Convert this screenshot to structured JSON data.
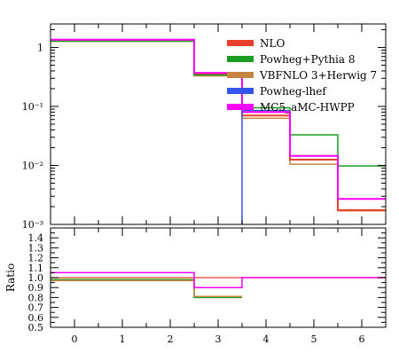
{
  "chart_data": [
    {
      "type": "line",
      "title": "",
      "xlabel": "",
      "ylabel": "",
      "yscale": "log",
      "xlim": [
        -0.5,
        6.5
      ],
      "ylim": [
        0.001,
        2.5
      ],
      "y_tick_labels": [
        "1",
        "10⁻¹",
        "10⁻²",
        "10⁻³"
      ],
      "y_tick_values": [
        1,
        0.1,
        0.01,
        0.001
      ],
      "legend": {
        "position": "top-right"
      },
      "bin_edges": [
        -0.5,
        2.5,
        3.5,
        4.5,
        5.5,
        6.5
      ],
      "series": [
        {
          "name": "NLO",
          "color": "#e8402a",
          "width": 2,
          "values": [
            1.3,
            0.36,
            0.07,
            0.0125,
            0.00175
          ]
        },
        {
          "name": "Powheg+Pythia 8",
          "color": "#1a9e22",
          "width": 1.5,
          "values": [
            1.28,
            0.34,
            0.095,
            0.033,
            0.0098
          ]
        },
        {
          "name": "VBFNLO 3+Herwig 7",
          "color": "#c68442",
          "width": 1.5,
          "values": [
            1.27,
            0.33,
            0.063,
            0.0105,
            0.0017
          ]
        },
        {
          "name": "Powheg-lhef",
          "color": "#3355ee",
          "width": 1.5,
          "values": [
            1.32,
            null,
            0.085,
            null,
            null
          ]
        },
        {
          "name": "MC5_aMC-HWPP",
          "color": "#ff00ff",
          "width": 2,
          "values": [
            1.35,
            0.37,
            0.08,
            0.0145,
            0.0027
          ]
        }
      ]
    },
    {
      "type": "line",
      "title": "",
      "xlabel": "",
      "ylabel": "Ratio",
      "xlim": [
        -0.5,
        6.5
      ],
      "ylim": [
        0.5,
        1.5
      ],
      "x_tick_labels": [
        "0",
        "1",
        "2",
        "3",
        "4",
        "5",
        "6"
      ],
      "y_tick_labels": [
        "0.5",
        "0.6",
        "0.7",
        "0.8",
        "0.9",
        "1.0",
        "1.1",
        "1.2",
        "1.3",
        "1.4"
      ],
      "bin_edges": [
        -0.5,
        2.5,
        3.5,
        6.5
      ],
      "series": [
        {
          "name": "Powheg+Pythia 8",
          "color": "#1a9e22",
          "width": 1.5,
          "values": [
            0.98,
            0.8,
            null
          ]
        },
        {
          "name": "VBFNLO 3+Herwig 7",
          "color": "#c68442",
          "width": 1.5,
          "values": [
            0.97,
            0.81,
            null
          ]
        },
        {
          "name": "MC5_aMC-HWPP",
          "color": "#ff00ff",
          "width": 1.5,
          "values": [
            1.05,
            0.9,
            1.0
          ]
        }
      ]
    }
  ]
}
